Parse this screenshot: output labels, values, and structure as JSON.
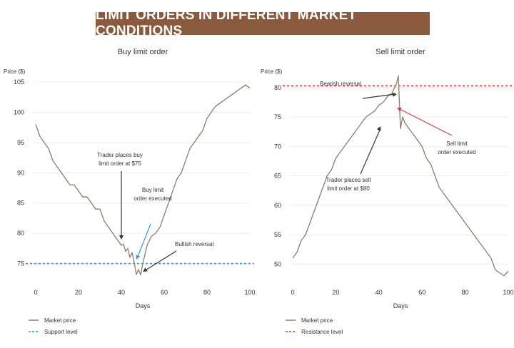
{
  "banner": "LIMIT ORDERS IN DIFFERENT MARKET CONDITIONS",
  "chart_data": [
    {
      "type": "line",
      "title": "Buy limit order",
      "xlabel": "Days",
      "ylabel": "Price ($)",
      "xlim": [
        0,
        100
      ],
      "ylim": [
        72,
        107
      ],
      "xticks": [
        0,
        20,
        40,
        60,
        80,
        100
      ],
      "yticks": [
        75,
        80,
        85,
        90,
        95,
        100,
        105
      ],
      "series": [
        {
          "name": "Market price",
          "color": "#8b7d6e",
          "x": [
            0,
            2,
            4,
            6,
            8,
            10,
            12,
            14,
            16,
            18,
            20,
            22,
            24,
            26,
            28,
            30,
            32,
            34,
            36,
            38,
            40,
            41,
            42,
            43,
            44,
            45,
            46,
            47,
            48,
            49,
            50,
            51,
            52,
            54,
            56,
            58,
            60,
            62,
            64,
            66,
            68,
            70,
            72,
            74,
            76,
            78,
            80,
            82,
            84,
            86,
            88,
            90,
            92,
            94,
            96,
            98,
            100
          ],
          "y": [
            98,
            96,
            95,
            94,
            92,
            91,
            90,
            89,
            88,
            88,
            87,
            86,
            86,
            85,
            84,
            84,
            82,
            81,
            80,
            79,
            78,
            78.2,
            77,
            77.5,
            76,
            76.8,
            75.2,
            73.2,
            74,
            73.1,
            75,
            76.5,
            78,
            79.5,
            80,
            81,
            83,
            85,
            87,
            89,
            90,
            92,
            94,
            95,
            96,
            97,
            99,
            100,
            101,
            101.5,
            102,
            102.5,
            103,
            103.5,
            104,
            104.5,
            104
          ]
        },
        {
          "name": "Support level",
          "type": "hline",
          "y": 75,
          "color": "#2a9fd6"
        }
      ],
      "annotations": [
        {
          "text": [
            "Trader places buy",
            "limit order at $75"
          ],
          "arrow_color": "#333"
        },
        {
          "text": [
            "Buy limit",
            "order executed"
          ],
          "arrow_color": "#2a9fd6"
        },
        {
          "text": [
            "Bullish reversal"
          ],
          "arrow_color": "#333"
        }
      ],
      "legend": [
        "Market price",
        "Support level"
      ]
    },
    {
      "type": "line",
      "title": "Sell limit order",
      "xlabel": "Days",
      "ylabel": "Price ($)",
      "xlim": [
        0,
        100
      ],
      "ylim": [
        47,
        83
      ],
      "xticks": [
        0,
        20,
        40,
        60,
        80,
        100
      ],
      "yticks": [
        50,
        55,
        60,
        65,
        70,
        75,
        80
      ],
      "series": [
        {
          "name": "Market price",
          "color": "#8b7d6e",
          "x": [
            0,
            2,
            4,
            6,
            8,
            10,
            12,
            14,
            16,
            18,
            20,
            22,
            24,
            26,
            28,
            30,
            32,
            34,
            36,
            38,
            40,
            42,
            44,
            46,
            47,
            48,
            49,
            50,
            51,
            52,
            54,
            56,
            58,
            60,
            62,
            64,
            66,
            68,
            70,
            72,
            74,
            76,
            78,
            80,
            82,
            84,
            86,
            88,
            90,
            92,
            94,
            96,
            98,
            100
          ],
          "y": [
            51,
            52,
            54,
            55,
            57,
            59,
            61,
            63,
            65,
            66,
            68,
            69,
            70,
            71,
            72,
            73,
            74,
            75,
            75.5,
            76,
            77,
            77.5,
            78.5,
            79,
            79.8,
            80.5,
            82,
            73,
            75,
            74,
            73,
            72,
            71,
            70,
            68,
            67,
            65,
            63,
            62,
            61,
            60,
            59,
            58,
            57,
            56,
            55,
            54,
            53,
            52,
            51,
            49,
            48.5,
            48,
            48.8
          ]
        },
        {
          "name": "Resistance level",
          "type": "hline",
          "y": 80.3,
          "color": "#e03a3a"
        }
      ],
      "annotations": [
        {
          "text": [
            "Bearish reversal"
          ],
          "arrow_color": "#333"
        },
        {
          "text": [
            "Sell limit",
            "order executed"
          ],
          "arrow_color": "#e03a3a"
        },
        {
          "text": [
            "Trader places sell",
            "limit order at $80"
          ],
          "arrow_color": "#333"
        }
      ],
      "legend": [
        "Market price",
        "Resistance level"
      ]
    }
  ]
}
